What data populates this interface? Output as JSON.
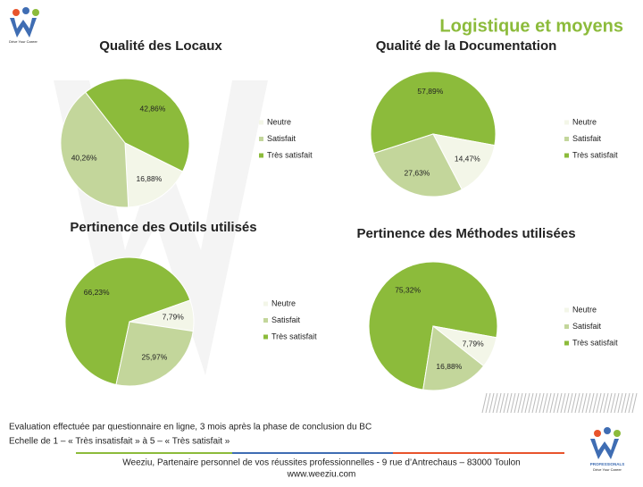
{
  "header": {
    "title": "Logistique et moyens",
    "logo_tagline": "Drive Your Career"
  },
  "chart_data": [
    {
      "type": "pie",
      "title": "Qualité des Locaux",
      "categories": [
        "Neutre",
        "Satisfait",
        "Très satisfait"
      ],
      "values": [
        16.88,
        40.26,
        42.86
      ],
      "value_labels": [
        "16,88%",
        "40,26%",
        "42,86%"
      ],
      "colors": [
        "#f3f6e8",
        "#c3d69b",
        "#8cbb3b"
      ]
    },
    {
      "type": "pie",
      "title": "Qualité de la Documentation",
      "categories": [
        "Neutre",
        "Satisfait",
        "Très satisfait"
      ],
      "values": [
        14.47,
        27.63,
        57.89
      ],
      "value_labels": [
        "14,47%",
        "27,63%",
        "57,89%"
      ],
      "colors": [
        "#f3f6e8",
        "#c3d69b",
        "#8cbb3b"
      ]
    },
    {
      "type": "pie",
      "title": "Pertinence des Outils utilisés",
      "categories": [
        "Neutre",
        "Satisfait",
        "Très satisfait"
      ],
      "values": [
        7.79,
        25.97,
        66.23
      ],
      "value_labels": [
        "7,79%",
        "25,97%",
        "66,23%"
      ],
      "colors": [
        "#f3f6e8",
        "#c3d69b",
        "#8cbb3b"
      ]
    },
    {
      "type": "pie",
      "title": "Pertinence des Méthodes utilisées",
      "categories": [
        "Neutre",
        "Satisfait",
        "Très satisfait"
      ],
      "values": [
        7.79,
        16.88,
        75.32
      ],
      "value_labels": [
        "7,79%",
        "16,88%",
        "75,32%"
      ],
      "colors": [
        "#f3f6e8",
        "#c3d69b",
        "#8cbb3b"
      ]
    }
  ],
  "notes": [
    "Evaluation effectuée par questionnaire en ligne, 3 mois après la phase de conclusion du BC",
    "Echelle de 1 – « Très insatisfait » à 5 – « Très satisfait »"
  ],
  "footer": {
    "line1": "Weeziu, Partenaire personnel de vos réussites professionnelles - 9 rue d’Antrechaus – 83000 Toulon",
    "line2": "www.weeziu.com",
    "logo_label": "PROFESSIONALS",
    "logo_tagline": "Drive Your Career"
  }
}
